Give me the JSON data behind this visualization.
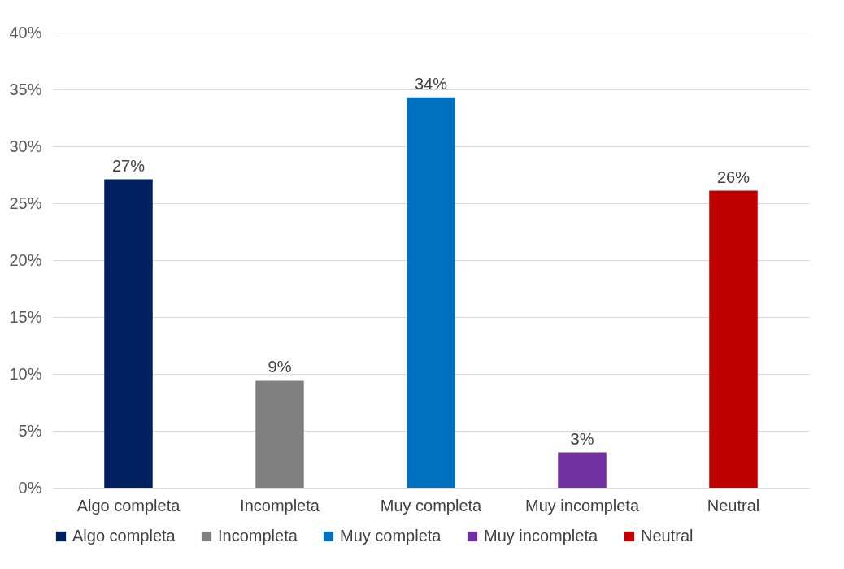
{
  "chart_data": {
    "type": "bar",
    "categories": [
      "Algo completa",
      "Incompleta",
      "Muy completa",
      "Muy incompleta",
      "Neutral"
    ],
    "series": [
      {
        "name": "Algo completa",
        "color": "#002060",
        "values": [
          27.1,
          null,
          null,
          null,
          null
        ],
        "value_labels": [
          "27%",
          null,
          null,
          null,
          null
        ]
      },
      {
        "name": "Incompleta",
        "color": "#808080",
        "values": [
          null,
          9.4,
          null,
          null,
          null
        ],
        "value_labels": [
          null,
          "9%",
          null,
          null,
          null
        ]
      },
      {
        "name": "Muy completa",
        "color": "#0070c0",
        "values": [
          null,
          null,
          34.3,
          null,
          null
        ],
        "value_labels": [
          null,
          null,
          "34%",
          null,
          null
        ]
      },
      {
        "name": "Muy incompleta",
        "color": "#7030a0",
        "values": [
          null,
          null,
          null,
          3.1,
          null
        ],
        "value_labels": [
          null,
          null,
          null,
          "3%",
          null
        ]
      },
      {
        "name": "Neutral",
        "color": "#c00000",
        "values": [
          null,
          null,
          null,
          null,
          26.1
        ],
        "value_labels": [
          null,
          null,
          null,
          null,
          "26%"
        ]
      }
    ],
    "ylim": [
      0,
      40
    ],
    "yticks": [
      {
        "value": 0,
        "label": "0%"
      },
      {
        "value": 5,
        "label": "5%"
      },
      {
        "value": 10,
        "label": "10%"
      },
      {
        "value": 15,
        "label": "15%"
      },
      {
        "value": 20,
        "label": "20%"
      },
      {
        "value": 25,
        "label": "25%"
      },
      {
        "value": 30,
        "label": "30%"
      },
      {
        "value": 35,
        "label": "35%"
      },
      {
        "value": 40,
        "label": "40%"
      }
    ],
    "grid": "y",
    "legend": "bottom"
  }
}
